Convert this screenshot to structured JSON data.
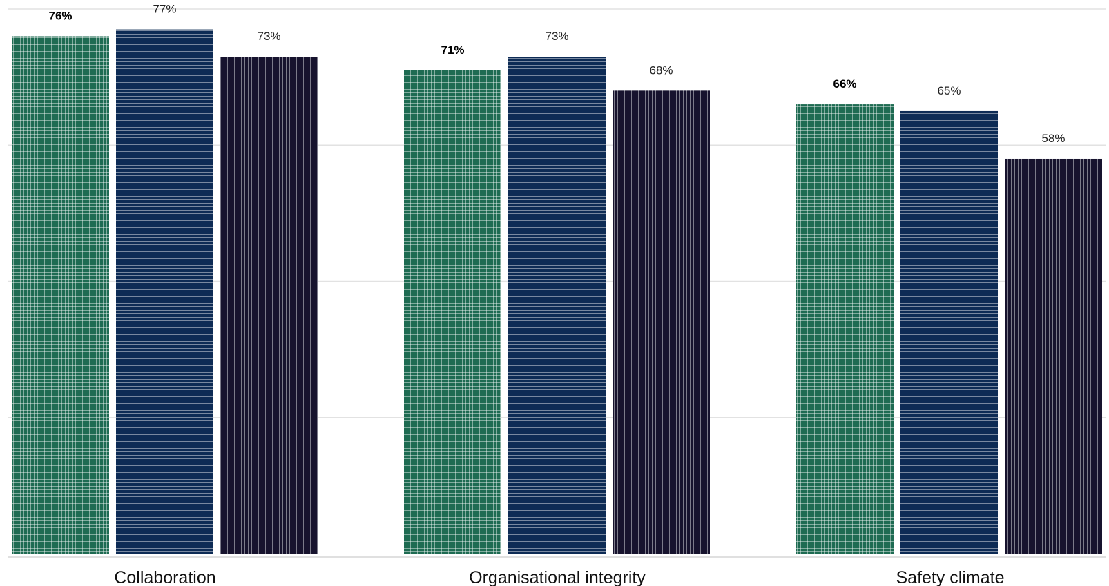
{
  "chart_data": {
    "type": "bar",
    "categories": [
      "Collaboration",
      "Organisational integrity",
      "Safety climate"
    ],
    "series": [
      {
        "color": "#1e6b52",
        "pattern": "grid",
        "bold_labels": true,
        "values": [
          76,
          71,
          66
        ]
      },
      {
        "color": "#0d2b55",
        "pattern": "horizontal-lines",
        "bold_labels": false,
        "values": [
          77,
          73,
          65
        ]
      },
      {
        "color": "#17132e",
        "pattern": "vertical-lines",
        "bold_labels": false,
        "values": [
          73,
          68,
          58
        ]
      }
    ],
    "value_suffix": "%",
    "ylim": [
      0,
      80
    ],
    "grid": true,
    "gridline_values": [
      0,
      20,
      40,
      60,
      80
    ],
    "xlabel": "",
    "ylabel": ""
  }
}
